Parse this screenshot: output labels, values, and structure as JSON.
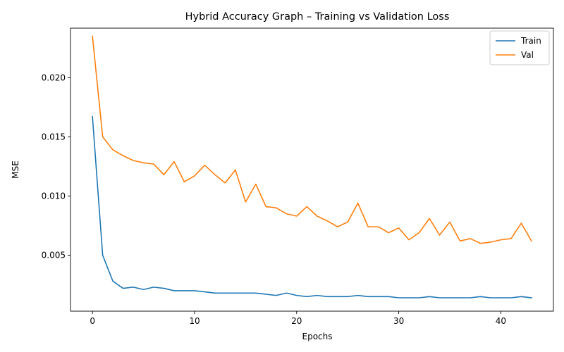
{
  "chart_data": {
    "type": "line",
    "title": "Hybrid Accuracy Graph – Training vs Validation Loss",
    "xlabel": "Epochs",
    "ylabel": "MSE",
    "xlim": [
      -2.15,
      45.15
    ],
    "ylim": [
      0.00027,
      0.02418
    ],
    "xticks": [
      0,
      10,
      20,
      30,
      40
    ],
    "xtick_labels": [
      "0",
      "10",
      "20",
      "30",
      "40"
    ],
    "yticks": [
      0.005,
      0.01,
      0.015,
      0.02
    ],
    "ytick_labels": [
      "0.005",
      "0.010",
      "0.015",
      "0.020"
    ],
    "grid": false,
    "legend_position": "top-right",
    "x": [
      0,
      1,
      2,
      3,
      4,
      5,
      6,
      7,
      8,
      9,
      10,
      11,
      12,
      13,
      14,
      15,
      16,
      17,
      18,
      19,
      20,
      21,
      22,
      23,
      24,
      25,
      26,
      27,
      28,
      29,
      30,
      31,
      32,
      33,
      34,
      35,
      36,
      37,
      38,
      39,
      40,
      41,
      42,
      43
    ],
    "series": [
      {
        "name": "Train",
        "color": "#1f77b4",
        "values": [
          0.0167,
          0.005,
          0.0028,
          0.0022,
          0.0023,
          0.0021,
          0.0023,
          0.0022,
          0.002,
          0.002,
          0.002,
          0.0019,
          0.0018,
          0.0018,
          0.0018,
          0.0018,
          0.0018,
          0.0017,
          0.0016,
          0.0018,
          0.0016,
          0.0015,
          0.0016,
          0.0015,
          0.0015,
          0.0015,
          0.0016,
          0.0015,
          0.0015,
          0.0015,
          0.0014,
          0.0014,
          0.0014,
          0.0015,
          0.0014,
          0.0014,
          0.0014,
          0.0014,
          0.0015,
          0.0014,
          0.0014,
          0.0014,
          0.0015,
          0.0014
        ]
      },
      {
        "name": "Val",
        "color": "#ff7f0e",
        "values": [
          0.0235,
          0.015,
          0.0139,
          0.0134,
          0.013,
          0.0128,
          0.0127,
          0.0118,
          0.0129,
          0.0112,
          0.0117,
          0.0126,
          0.0118,
          0.0111,
          0.0122,
          0.0095,
          0.011,
          0.0091,
          0.009,
          0.0085,
          0.0083,
          0.0091,
          0.0083,
          0.0079,
          0.0074,
          0.0078,
          0.0094,
          0.0074,
          0.0074,
          0.0069,
          0.0073,
          0.0063,
          0.0069,
          0.0081,
          0.0067,
          0.0078,
          0.0062,
          0.0064,
          0.006,
          0.0061,
          0.0063,
          0.0064,
          0.0077,
          0.0062
        ]
      }
    ]
  }
}
